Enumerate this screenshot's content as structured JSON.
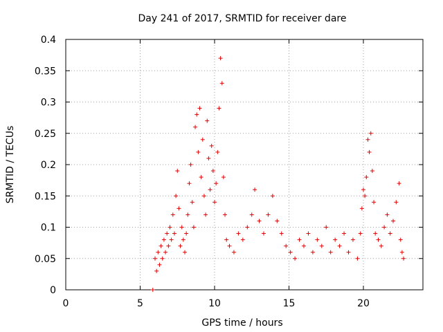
{
  "chart_data": {
    "type": "scatter",
    "title": "Day 241 of 2017, SRMTID for receiver dare",
    "xlabel": "GPS time / hours",
    "ylabel": "SRMTID / TECUs",
    "xlim": [
      0,
      24
    ],
    "ylim": [
      0,
      0.4
    ],
    "xticks": [
      0,
      5,
      10,
      15,
      20
    ],
    "xtick_labels": [
      "0",
      "5",
      "10",
      "15",
      "20"
    ],
    "yticks": [
      0,
      0.05,
      0.1,
      0.15,
      0.2,
      0.25,
      0.3,
      0.35,
      0.4
    ],
    "ytick_labels": [
      "0",
      "0.05",
      "0.1",
      "0.15",
      "0.2",
      "0.25",
      "0.3",
      "0.35",
      "0.4"
    ],
    "grid": true,
    "marker": "+",
    "color": "#e00000",
    "series": [
      {
        "name": "SRMTID",
        "points": [
          [
            5.85,
            0.0
          ],
          [
            6.0,
            0.05
          ],
          [
            6.1,
            0.03
          ],
          [
            6.2,
            0.06
          ],
          [
            6.3,
            0.04
          ],
          [
            6.4,
            0.07
          ],
          [
            6.5,
            0.05
          ],
          [
            6.6,
            0.08
          ],
          [
            6.7,
            0.06
          ],
          [
            6.8,
            0.09
          ],
          [
            6.9,
            0.07
          ],
          [
            7.0,
            0.1
          ],
          [
            7.1,
            0.08
          ],
          [
            7.2,
            0.12
          ],
          [
            7.3,
            0.09
          ],
          [
            7.4,
            0.15
          ],
          [
            7.5,
            0.19
          ],
          [
            7.6,
            0.13
          ],
          [
            7.7,
            0.07
          ],
          [
            7.8,
            0.1
          ],
          [
            7.9,
            0.08
          ],
          [
            8.0,
            0.06
          ],
          [
            8.1,
            0.09
          ],
          [
            8.2,
            0.12
          ],
          [
            8.3,
            0.17
          ],
          [
            8.4,
            0.2
          ],
          [
            8.5,
            0.14
          ],
          [
            8.6,
            0.1
          ],
          [
            8.7,
            0.26
          ],
          [
            8.8,
            0.28
          ],
          [
            8.9,
            0.22
          ],
          [
            9.0,
            0.29
          ],
          [
            9.1,
            0.18
          ],
          [
            9.2,
            0.24
          ],
          [
            9.3,
            0.15
          ],
          [
            9.4,
            0.12
          ],
          [
            9.5,
            0.27
          ],
          [
            9.6,
            0.21
          ],
          [
            9.7,
            0.16
          ],
          [
            9.8,
            0.23
          ],
          [
            9.9,
            0.19
          ],
          [
            10.0,
            0.14
          ],
          [
            10.1,
            0.17
          ],
          [
            10.2,
            0.22
          ],
          [
            10.3,
            0.29
          ],
          [
            10.4,
            0.37
          ],
          [
            10.5,
            0.33
          ],
          [
            10.6,
            0.18
          ],
          [
            10.7,
            0.12
          ],
          [
            10.8,
            0.08
          ],
          [
            11.0,
            0.07
          ],
          [
            11.3,
            0.06
          ],
          [
            11.6,
            0.09
          ],
          [
            11.9,
            0.08
          ],
          [
            12.2,
            0.1
          ],
          [
            12.5,
            0.12
          ],
          [
            12.7,
            0.16
          ],
          [
            13.0,
            0.11
          ],
          [
            13.3,
            0.09
          ],
          [
            13.6,
            0.12
          ],
          [
            13.9,
            0.15
          ],
          [
            14.2,
            0.11
          ],
          [
            14.5,
            0.09
          ],
          [
            14.8,
            0.07
          ],
          [
            15.1,
            0.06
          ],
          [
            15.4,
            0.05
          ],
          [
            15.7,
            0.08
          ],
          [
            16.0,
            0.07
          ],
          [
            16.3,
            0.09
          ],
          [
            16.6,
            0.06
          ],
          [
            16.9,
            0.08
          ],
          [
            17.2,
            0.07
          ],
          [
            17.5,
            0.1
          ],
          [
            17.8,
            0.06
          ],
          [
            18.1,
            0.08
          ],
          [
            18.4,
            0.07
          ],
          [
            18.7,
            0.09
          ],
          [
            19.0,
            0.06
          ],
          [
            19.3,
            0.08
          ],
          [
            19.6,
            0.05
          ],
          [
            19.8,
            0.09
          ],
          [
            19.9,
            0.13
          ],
          [
            20.0,
            0.16
          ],
          [
            20.1,
            0.15
          ],
          [
            20.2,
            0.18
          ],
          [
            20.3,
            0.24
          ],
          [
            20.4,
            0.22
          ],
          [
            20.5,
            0.25
          ],
          [
            20.6,
            0.19
          ],
          [
            20.7,
            0.14
          ],
          [
            20.8,
            0.09
          ],
          [
            21.0,
            0.08
          ],
          [
            21.2,
            0.07
          ],
          [
            21.4,
            0.1
          ],
          [
            21.6,
            0.12
          ],
          [
            21.8,
            0.09
          ],
          [
            22.0,
            0.11
          ],
          [
            22.2,
            0.14
          ],
          [
            22.4,
            0.17
          ],
          [
            22.5,
            0.08
          ],
          [
            22.6,
            0.06
          ],
          [
            22.7,
            0.05
          ]
        ]
      }
    ]
  }
}
